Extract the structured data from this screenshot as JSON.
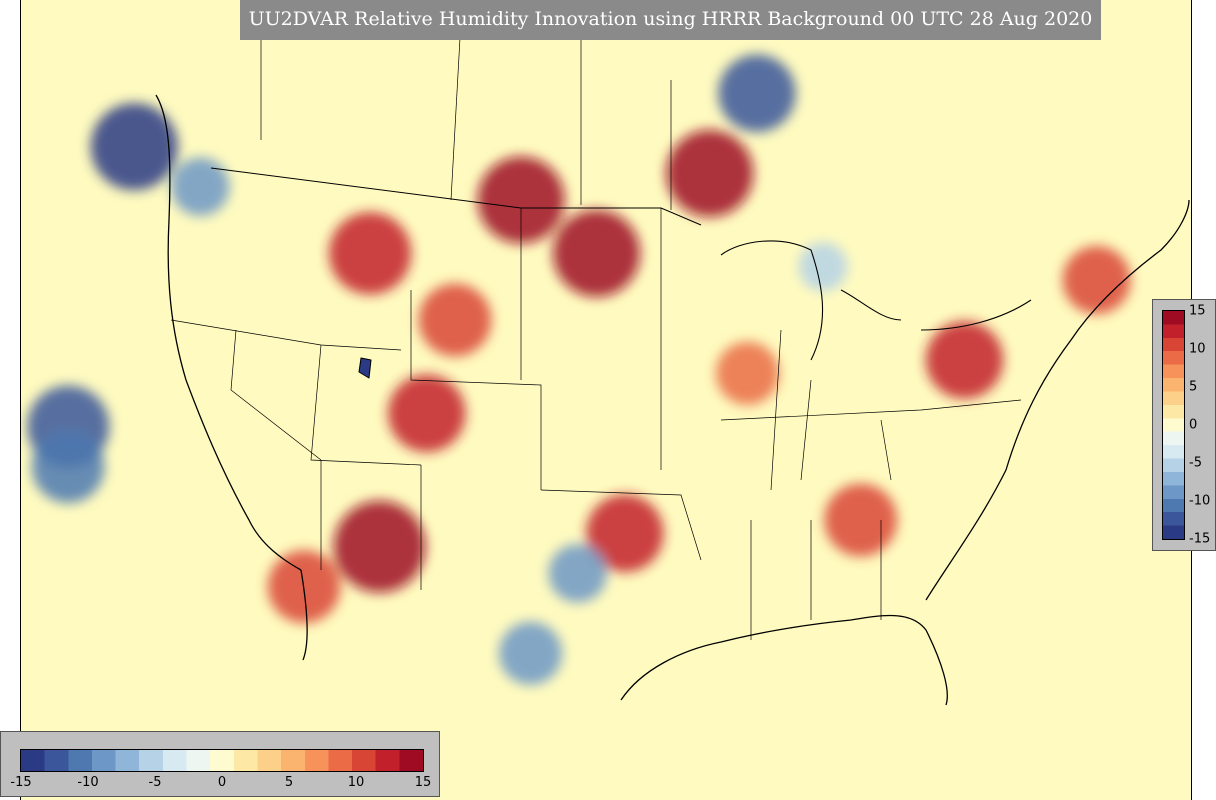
{
  "title": "UU2DVAR Relative Humidity Innovation using HRRR Background 00 UTC 28 Aug 2020",
  "colorbar": {
    "min": -15,
    "max": 15,
    "ticks": [
      "-15",
      "-10",
      "-5",
      "0",
      "5",
      "10",
      "15"
    ],
    "tick_values": [
      -15,
      -10,
      -5,
      0,
      5,
      10,
      15
    ],
    "colors": [
      "#2b3a84",
      "#3b569a",
      "#4e78b0",
      "#6d97c6",
      "#8fb6d8",
      "#b5d2e6",
      "#d8eaf1",
      "#eef6f2",
      "#fffbd0",
      "#fee8a6",
      "#fdd08a",
      "#fbb470",
      "#f6925a",
      "#ea6b45",
      "#d94535",
      "#c2202b",
      "#9e0b23"
    ]
  },
  "map": {
    "background_color": "#fffbc0",
    "anomalies": [
      {
        "lon": -108,
        "lat": 33.5,
        "value": 15
      },
      {
        "lon": -96.5,
        "lat": 44.5,
        "value": 14
      },
      {
        "lon": -90.5,
        "lat": 47.5,
        "value": 14
      },
      {
        "lon": -77,
        "lat": 40.5,
        "value": 12
      },
      {
        "lon": -82.5,
        "lat": 34.5,
        "value": 11
      },
      {
        "lon": -95,
        "lat": 34,
        "value": 12
      },
      {
        "lon": -112,
        "lat": 32,
        "value": 11
      },
      {
        "lon": -105.5,
        "lat": 38.5,
        "value": 12
      },
      {
        "lon": -100.5,
        "lat": 46.5,
        "value": 14
      },
      {
        "lon": -108.5,
        "lat": 44.5,
        "value": 13
      },
      {
        "lon": -104,
        "lat": 42,
        "value": 11
      },
      {
        "lon": -88.5,
        "lat": 40,
        "value": 9
      },
      {
        "lon": -70,
        "lat": 43.5,
        "value": 10
      },
      {
        "lon": -121,
        "lat": 48.5,
        "value": -14
      },
      {
        "lon": -124.5,
        "lat": 38,
        "value": -13
      },
      {
        "lon": -124.5,
        "lat": 36.5,
        "value": -11
      },
      {
        "lon": -100,
        "lat": 29.5,
        "value": -9
      },
      {
        "lon": -88,
        "lat": 50.5,
        "value": -12
      },
      {
        "lon": -97.5,
        "lat": 32.5,
        "value": -8
      },
      {
        "lon": -117.5,
        "lat": 47,
        "value": -8
      },
      {
        "lon": -84.5,
        "lat": 44,
        "value": -6
      }
    ]
  }
}
